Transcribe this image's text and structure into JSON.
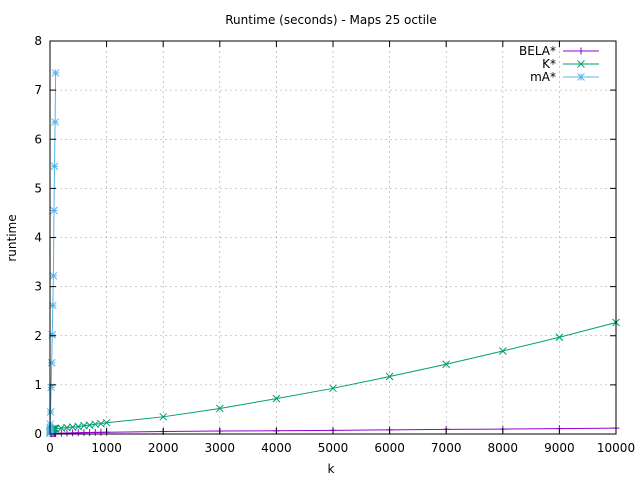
{
  "chart_data": {
    "type": "line",
    "title": "Runtime (seconds) - Maps 25 octile",
    "xlabel": "k",
    "ylabel": "runtime",
    "xlim": [
      0,
      10000
    ],
    "ylim": [
      0,
      8
    ],
    "x_ticks": [
      0,
      1000,
      2000,
      3000,
      4000,
      5000,
      6000,
      7000,
      8000,
      9000,
      10000
    ],
    "y_ticks": [
      0,
      1,
      2,
      3,
      4,
      5,
      6,
      7,
      8
    ],
    "grid": true,
    "legend_position": "top-right",
    "series": [
      {
        "name": "BELA*",
        "color": "#9400d3",
        "marker": "plus",
        "x": [
          1,
          2,
          3,
          4,
          5,
          10,
          20,
          30,
          40,
          50,
          60,
          70,
          80,
          90,
          100,
          200,
          300,
          400,
          500,
          600,
          700,
          800,
          900,
          1000,
          2000,
          3000,
          4000,
          5000,
          6000,
          7000,
          8000,
          9000,
          10000
        ],
        "y": [
          0.01,
          0.01,
          0.01,
          0.01,
          0.01,
          0.01,
          0.01,
          0.01,
          0.01,
          0.01,
          0.01,
          0.01,
          0.01,
          0.01,
          0.01,
          0.015,
          0.02,
          0.022,
          0.025,
          0.028,
          0.03,
          0.032,
          0.034,
          0.036,
          0.05,
          0.06,
          0.065,
          0.075,
          0.085,
          0.095,
          0.1,
          0.11,
          0.12
        ]
      },
      {
        "name": "K*",
        "color": "#009e73",
        "marker": "x",
        "x": [
          1,
          2,
          3,
          4,
          5,
          10,
          20,
          30,
          40,
          50,
          60,
          70,
          80,
          90,
          100,
          200,
          300,
          400,
          500,
          600,
          700,
          800,
          900,
          1000,
          2000,
          3000,
          4000,
          5000,
          6000,
          7000,
          8000,
          9000,
          10000
        ],
        "y": [
          0.02,
          0.03,
          0.04,
          0.05,
          0.06,
          0.08,
          0.09,
          0.1,
          0.1,
          0.1,
          0.1,
          0.11,
          0.11,
          0.11,
          0.11,
          0.12,
          0.13,
          0.14,
          0.15,
          0.17,
          0.18,
          0.2,
          0.21,
          0.23,
          0.35,
          0.52,
          0.72,
          0.93,
          1.17,
          1.42,
          1.69,
          1.97,
          2.27
        ]
      },
      {
        "name": "mA*",
        "color": "#56b4e9",
        "marker": "star",
        "x": [
          1,
          2,
          3,
          4,
          5,
          10,
          20,
          30,
          40,
          50,
          60,
          70,
          80,
          90,
          100
        ],
        "y": [
          0.02,
          0.04,
          0.07,
          0.12,
          0.2,
          0.45,
          0.95,
          1.45,
          2.02,
          2.62,
          3.22,
          4.55,
          5.45,
          6.35,
          7.35
        ]
      }
    ]
  }
}
